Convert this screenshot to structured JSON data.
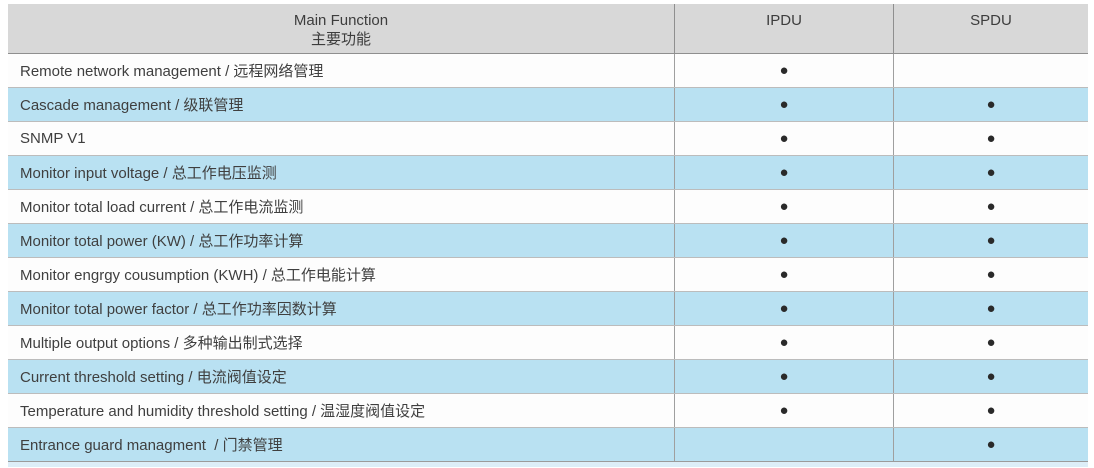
{
  "table": {
    "header": {
      "main_en": "Main Function",
      "main_zh": "主要功能",
      "ipdu": "IPDU",
      "spdu": "SPDU"
    },
    "dot_glyph": "●",
    "rows": [
      {
        "label": "Remote network management / 远程网络管理",
        "ipdu": true,
        "spdu": false
      },
      {
        "label": "Cascade management / 级联管理",
        "ipdu": true,
        "spdu": true
      },
      {
        "label": "SNMP V1",
        "ipdu": true,
        "spdu": true
      },
      {
        "label": "Monitor input voltage / 总工作电压监测",
        "ipdu": true,
        "spdu": true
      },
      {
        "label": "Monitor total load current / 总工作电流监测",
        "ipdu": true,
        "spdu": true
      },
      {
        "label": "Monitor total power (KW) / 总工作功率计算",
        "ipdu": true,
        "spdu": true
      },
      {
        "label": "Monitor engrgy cousumption (KWH) / 总工作电能计算",
        "ipdu": true,
        "spdu": true
      },
      {
        "label": "Monitor total power factor / 总工作功率因数计算",
        "ipdu": true,
        "spdu": true
      },
      {
        "label": "Multiple output options / 多种输出制式选择",
        "ipdu": true,
        "spdu": true
      },
      {
        "label": "Current threshold setting / 电流阀值设定",
        "ipdu": true,
        "spdu": true
      },
      {
        "label": "Temperature and humidity threshold setting / 温湿度阀值设定",
        "ipdu": true,
        "spdu": true
      },
      {
        "label": "Entrance guard managment  / 门禁管理",
        "ipdu": false,
        "spdu": true
      }
    ]
  },
  "colors": {
    "header_bg": "#d8d8d8",
    "row_bg": "#fdfdfd",
    "row_alt_bg": "#b9e1f2",
    "dot": "#2a2a2a",
    "grid_line": "#8f8f8f",
    "text": "#3f3f3f",
    "bottom_strip": "#ddeef8"
  }
}
